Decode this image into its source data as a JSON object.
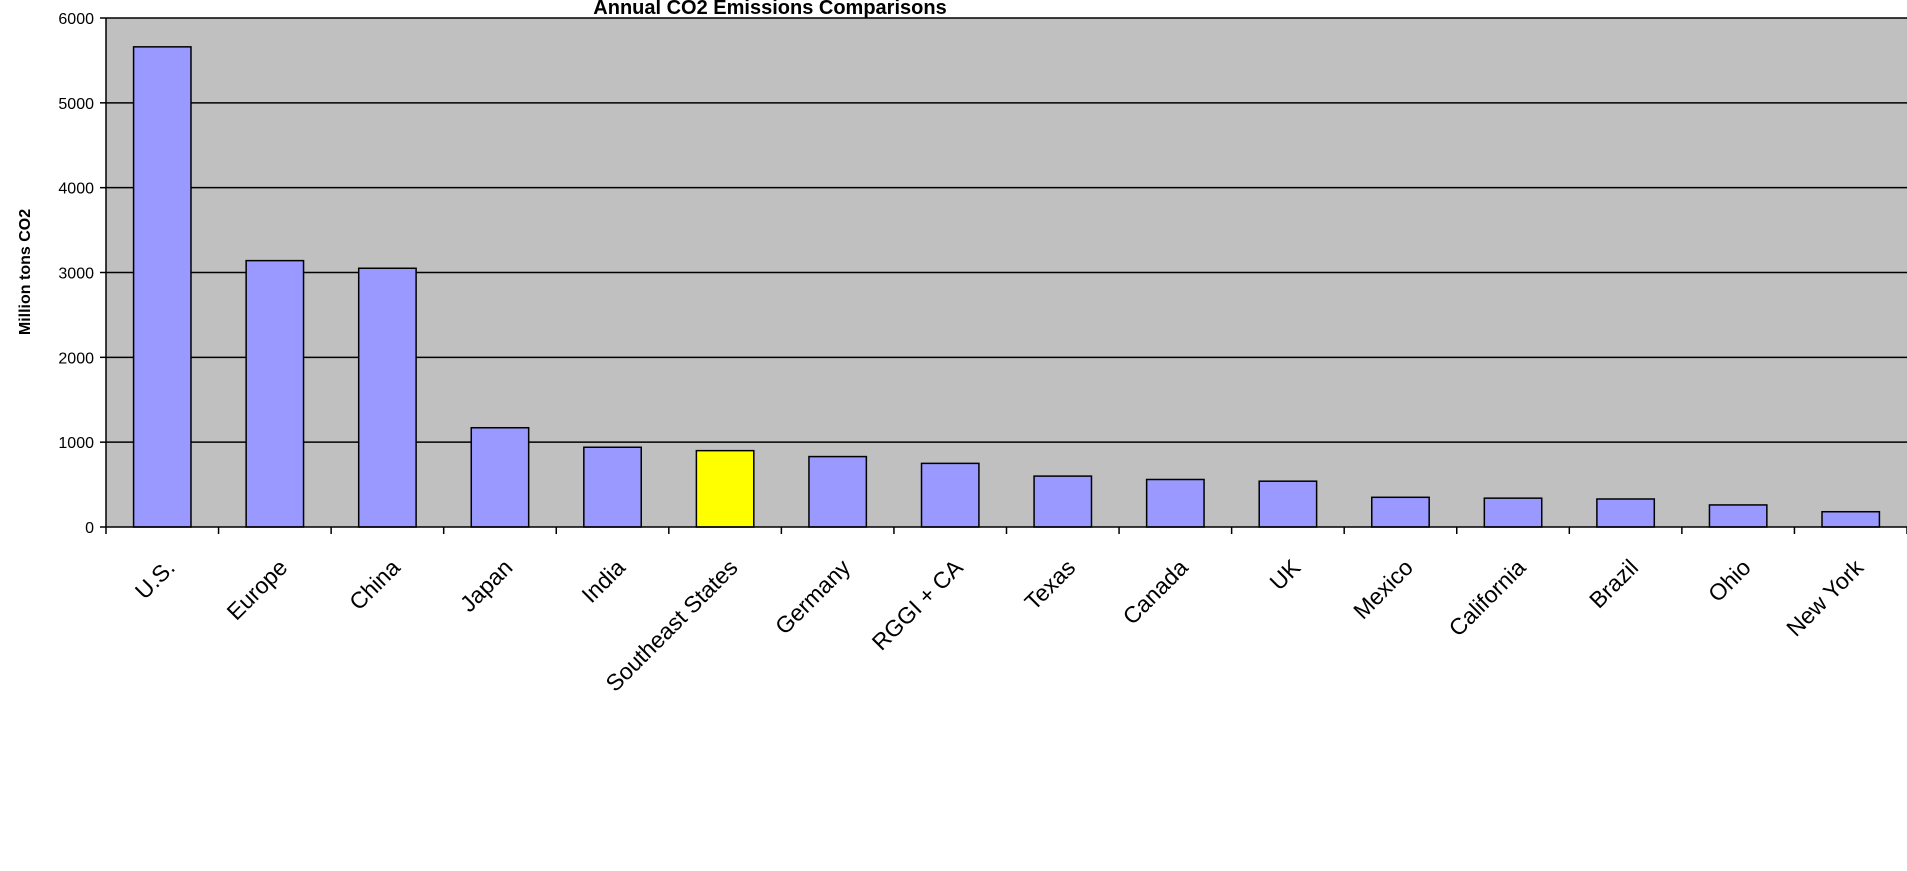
{
  "chart_data": {
    "type": "bar",
    "title": "Annual CO2 Emissions Comparisons",
    "xlabel": "",
    "ylabel": "Million tons CO2",
    "ylim": [
      0,
      6000
    ],
    "yticks": [
      "0",
      "1000",
      "2000",
      "3000",
      "4000",
      "5000",
      "6000"
    ],
    "grid": true,
    "categories": [
      "U.S.",
      "Europe",
      "China",
      "Japan",
      "India",
      "Southeast States",
      "Germany",
      "RGGI + CA",
      "Texas",
      "Canada",
      "UK",
      "Mexico",
      "California",
      "Brazil",
      "Ohio",
      "New York"
    ],
    "values": [
      5660,
      3140,
      3050,
      1170,
      940,
      900,
      830,
      750,
      600,
      560,
      540,
      350,
      340,
      330,
      260,
      180
    ],
    "highlight_category": "Southeast States",
    "colors": {
      "bar": "#9999ff",
      "highlight": "#ffff00",
      "plot_background": "#c0c0c0",
      "gridline": "#000000",
      "bar_edge": "#000000"
    }
  }
}
